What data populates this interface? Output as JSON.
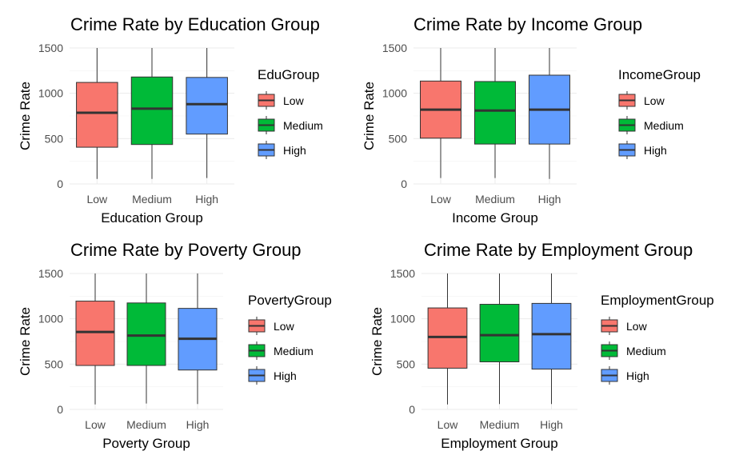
{
  "colors": {
    "low": "#F8766D",
    "medium": "#00BA38",
    "high": "#619CFF"
  },
  "chart_data": [
    {
      "type": "box",
      "title": "Crime Rate by Education Group",
      "xlabel": "Education Group",
      "ylabel": "Crime Rate",
      "legend_title": "EduGroup",
      "ylim": [
        0,
        1500
      ],
      "yticks": [
        0,
        500,
        1000,
        1500
      ],
      "categories": [
        "Low",
        "Medium",
        "High"
      ],
      "boxes": [
        {
          "name": "Low",
          "min": 55,
          "q1": 405,
          "median": 785,
          "q3": 1120,
          "max": 1500
        },
        {
          "name": "Medium",
          "min": 55,
          "q1": 435,
          "median": 830,
          "q3": 1180,
          "max": 1500
        },
        {
          "name": "High",
          "min": 65,
          "q1": 550,
          "median": 880,
          "q3": 1175,
          "max": 1500
        }
      ]
    },
    {
      "type": "box",
      "title": "Crime Rate by Income Group",
      "xlabel": "Income Group",
      "ylabel": "Crime Rate",
      "legend_title": "IncomeGroup",
      "ylim": [
        0,
        1500
      ],
      "yticks": [
        0,
        500,
        1000,
        1500
      ],
      "categories": [
        "Low",
        "Medium",
        "High"
      ],
      "boxes": [
        {
          "name": "Low",
          "min": 65,
          "q1": 505,
          "median": 820,
          "q3": 1135,
          "max": 1500
        },
        {
          "name": "Medium",
          "min": 65,
          "q1": 440,
          "median": 810,
          "q3": 1130,
          "max": 1500
        },
        {
          "name": "High",
          "min": 55,
          "q1": 440,
          "median": 820,
          "q3": 1200,
          "max": 1500
        }
      ]
    },
    {
      "type": "box",
      "title": "Crime Rate by Poverty Group",
      "xlabel": "Poverty Group",
      "ylabel": "Crime Rate",
      "legend_title": "PovertyGroup",
      "ylim": [
        0,
        1500
      ],
      "yticks": [
        0,
        500,
        1000,
        1500
      ],
      "categories": [
        "Low",
        "Medium",
        "High"
      ],
      "boxes": [
        {
          "name": "Low",
          "min": 55,
          "q1": 485,
          "median": 855,
          "q3": 1195,
          "max": 1500
        },
        {
          "name": "Medium",
          "min": 65,
          "q1": 485,
          "median": 815,
          "q3": 1175,
          "max": 1500
        },
        {
          "name": "High",
          "min": 60,
          "q1": 435,
          "median": 780,
          "q3": 1115,
          "max": 1500
        }
      ]
    },
    {
      "type": "box",
      "title": "Crime Rate by Employment Group",
      "xlabel": "Employment Group",
      "ylabel": "Crime Rate",
      "legend_title": "EmploymentGroup",
      "ylim": [
        0,
        1500
      ],
      "yticks": [
        0,
        500,
        1000,
        1500
      ],
      "categories": [
        "Low",
        "Medium",
        "High"
      ],
      "boxes": [
        {
          "name": "Low",
          "min": 55,
          "q1": 455,
          "median": 800,
          "q3": 1120,
          "max": 1500
        },
        {
          "name": "Medium",
          "min": 60,
          "q1": 525,
          "median": 820,
          "q3": 1160,
          "max": 1500
        },
        {
          "name": "High",
          "min": 60,
          "q1": 445,
          "median": 830,
          "q3": 1170,
          "max": 1500
        }
      ]
    }
  ]
}
